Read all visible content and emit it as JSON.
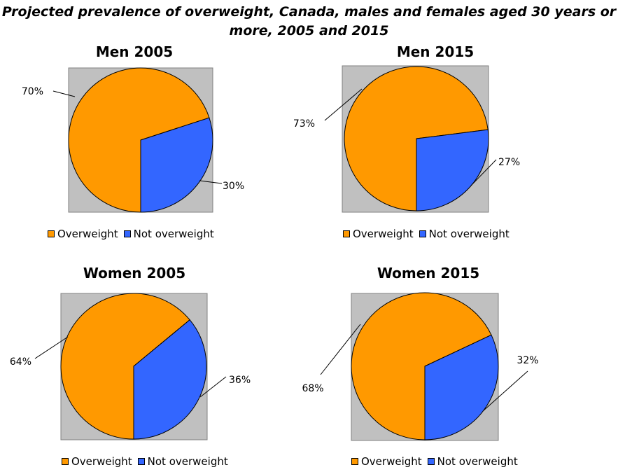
{
  "title": "Projected prevalence of overweight, Canada, males and females aged 30 years or more, 2005 and 2015",
  "colors": {
    "overweight": "#FF9900",
    "not_overweight": "#3366FF",
    "plot_bg": "#C0C0C0"
  },
  "legend": {
    "labels": [
      "Overweight",
      "Not overweight"
    ]
  },
  "chart_data": [
    {
      "type": "pie",
      "title": "Men 2005",
      "categories": [
        "Overweight",
        "Not overweight"
      ],
      "values": [
        70,
        30
      ],
      "labels": [
        "70%",
        "30%"
      ],
      "legend_position": "bottom"
    },
    {
      "type": "pie",
      "title": "Men 2015",
      "categories": [
        "Overweight",
        "Not overweight"
      ],
      "values": [
        73,
        27
      ],
      "labels": [
        "73%",
        "27%"
      ],
      "legend_position": "bottom"
    },
    {
      "type": "pie",
      "title": "Women 2005",
      "categories": [
        "Overweight",
        "Not overweight"
      ],
      "values": [
        64,
        36
      ],
      "labels": [
        "64%",
        "36%"
      ],
      "legend_position": "bottom"
    },
    {
      "type": "pie",
      "title": "Women 2015",
      "categories": [
        "Overweight",
        "Not overweight"
      ],
      "values": [
        68,
        32
      ],
      "labels": [
        "68%",
        "32%"
      ],
      "legend_position": "bottom"
    }
  ]
}
